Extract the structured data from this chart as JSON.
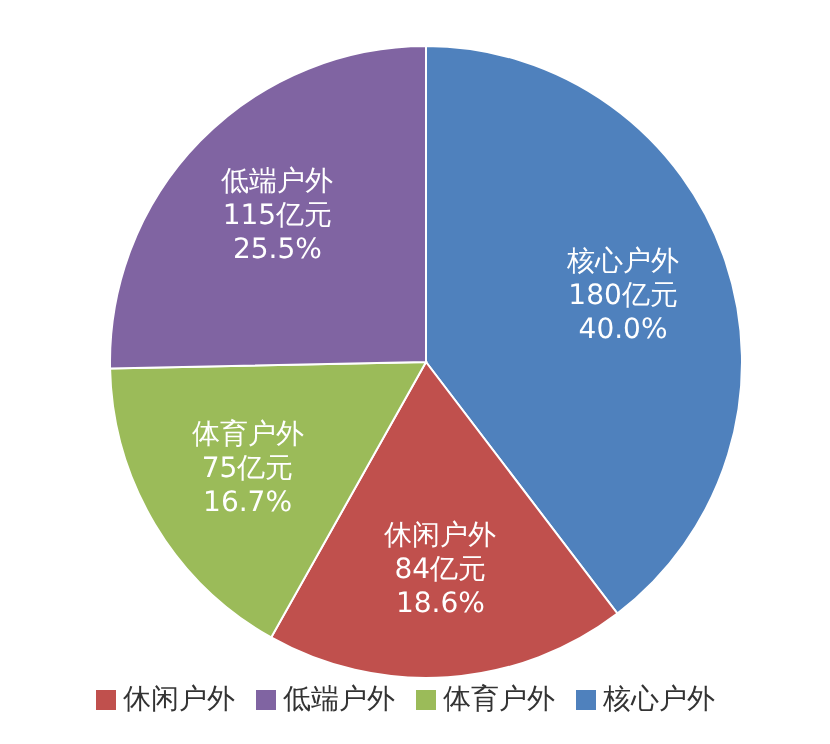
{
  "chart_data": {
    "type": "pie",
    "categories": [
      "核心户外",
      "休闲户外",
      "体育户外",
      "低端户外"
    ],
    "values": [
      180,
      84,
      75,
      115
    ],
    "value_labels": [
      "180亿元\n40.0%",
      "84亿元\n18.6%",
      "75亿元\n16.7%",
      "115亿元\n25.5%"
    ],
    "colors": [
      "#4f81bd",
      "#c0504d",
      "#9bbb59",
      "#8064a2"
    ],
    "legend": "bottom"
  }
}
